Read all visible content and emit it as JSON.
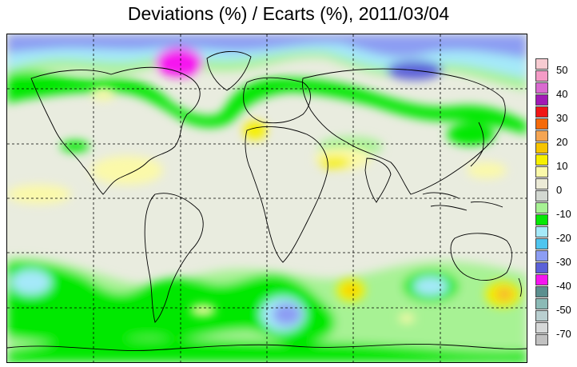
{
  "title": "Deviations (%) / Ecarts (%), 2011/03/04",
  "legend": {
    "labels": [
      "50",
      "40",
      "30",
      "20",
      "10",
      "0",
      "-10",
      "-20",
      "-30",
      "-40",
      "-50",
      "-70"
    ],
    "colors": [
      "#f7cbd1",
      "#f49bc6",
      "#d96ad0",
      "#a11ab5",
      "#f01616",
      "#f56a0a",
      "#f5a553",
      "#f6c400",
      "#f6f000",
      "#fbf9a9",
      "#ecebd7",
      "#d3d8d2",
      "#a7f294",
      "#06e806",
      "#a5e9f9",
      "#4fc5ef",
      "#8c9df3",
      "#5b61d8",
      "#f615ef",
      "#5c8f8f",
      "#8bbab6",
      "#b9cfd0",
      "#d6d8d8",
      "#c1c1c1"
    ]
  }
}
